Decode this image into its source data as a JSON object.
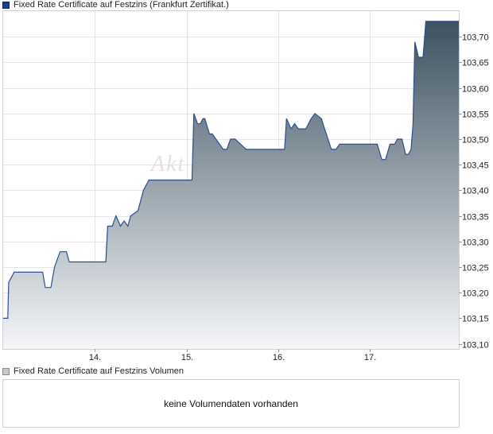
{
  "chart_data": {
    "type": "area",
    "legend": "Fixed Rate Certificate auf Festzins (Frankfurt Zertifikat.)",
    "x_tick_labels": [
      "14.",
      "15.",
      "16.",
      "17."
    ],
    "x_ticks": [
      1,
      2,
      3,
      4
    ],
    "x_range": [
      0.0,
      4.97
    ],
    "y_range": [
      103.09,
      103.75
    ],
    "y_ticks": [
      103.1,
      103.15,
      103.2,
      103.25,
      103.3,
      103.35,
      103.4,
      103.45,
      103.5,
      103.55,
      103.6,
      103.65,
      103.7
    ],
    "y_tick_labels": [
      "103,10",
      "103,15",
      "103,20",
      "103,25",
      "103,30",
      "103,35",
      "103,40",
      "103,45",
      "103,50",
      "103,55",
      "103,60",
      "103,65",
      "103,70"
    ],
    "grid": true,
    "line_color": "#2a4d8f",
    "fill_top_color": "#3c5262",
    "fill_bottom_color": "#f6f7f9",
    "series": [
      {
        "x": [
          0.0,
          0.05,
          0.06,
          0.09,
          0.12,
          0.43,
          0.46,
          0.52,
          0.56,
          0.62,
          0.69,
          0.72,
          1.12,
          1.14,
          1.19,
          1.23,
          1.28,
          1.32,
          1.36,
          1.39,
          1.47,
          1.53,
          1.59,
          1.65,
          1.69,
          2.06,
          2.08,
          2.1,
          2.12,
          2.15,
          2.18,
          2.2,
          2.25,
          2.28,
          2.4,
          2.44,
          2.48,
          2.53,
          2.65,
          2.69,
          3.07,
          3.09,
          3.14,
          3.18,
          3.22,
          3.3,
          3.36,
          3.4,
          3.47,
          3.58,
          3.63,
          3.67,
          4.08,
          4.13,
          4.17,
          4.22,
          4.27,
          4.3,
          4.35,
          4.39,
          4.42,
          4.45,
          4.47,
          4.49,
          4.53,
          4.58,
          4.61,
          4.97
        ],
        "y": [
          103.15,
          103.15,
          103.22,
          103.23,
          103.24,
          103.24,
          103.21,
          103.21,
          103.25,
          103.28,
          103.28,
          103.26,
          103.26,
          103.33,
          103.33,
          103.35,
          103.33,
          103.34,
          103.33,
          103.35,
          103.36,
          103.4,
          103.42,
          103.42,
          103.42,
          103.42,
          103.55,
          103.54,
          103.53,
          103.53,
          103.54,
          103.54,
          103.51,
          103.51,
          103.48,
          103.48,
          103.5,
          103.5,
          103.48,
          103.48,
          103.48,
          103.54,
          103.52,
          103.53,
          103.52,
          103.52,
          103.54,
          103.55,
          103.54,
          103.48,
          103.48,
          103.49,
          103.49,
          103.46,
          103.46,
          103.49,
          103.49,
          103.5,
          103.5,
          103.47,
          103.47,
          103.48,
          103.53,
          103.69,
          103.66,
          103.66,
          103.73,
          103.73
        ]
      }
    ]
  },
  "volume": {
    "legend": "Fixed Rate Certificate auf Festzins Volumen",
    "message": "keine Volumendaten vorhanden"
  },
  "watermark": "Akt"
}
